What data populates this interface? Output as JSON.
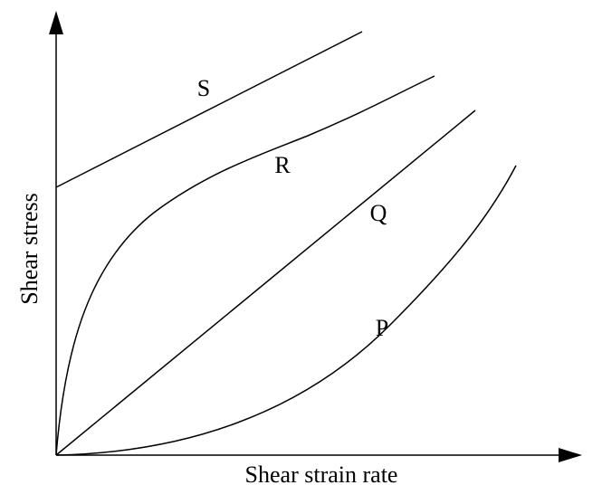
{
  "axes": {
    "x_label": "Shear strain rate",
    "y_label": "Shear stress"
  },
  "curves": [
    {
      "label": "S"
    },
    {
      "label": "R"
    },
    {
      "label": "Q"
    },
    {
      "label": "P"
    }
  ]
}
